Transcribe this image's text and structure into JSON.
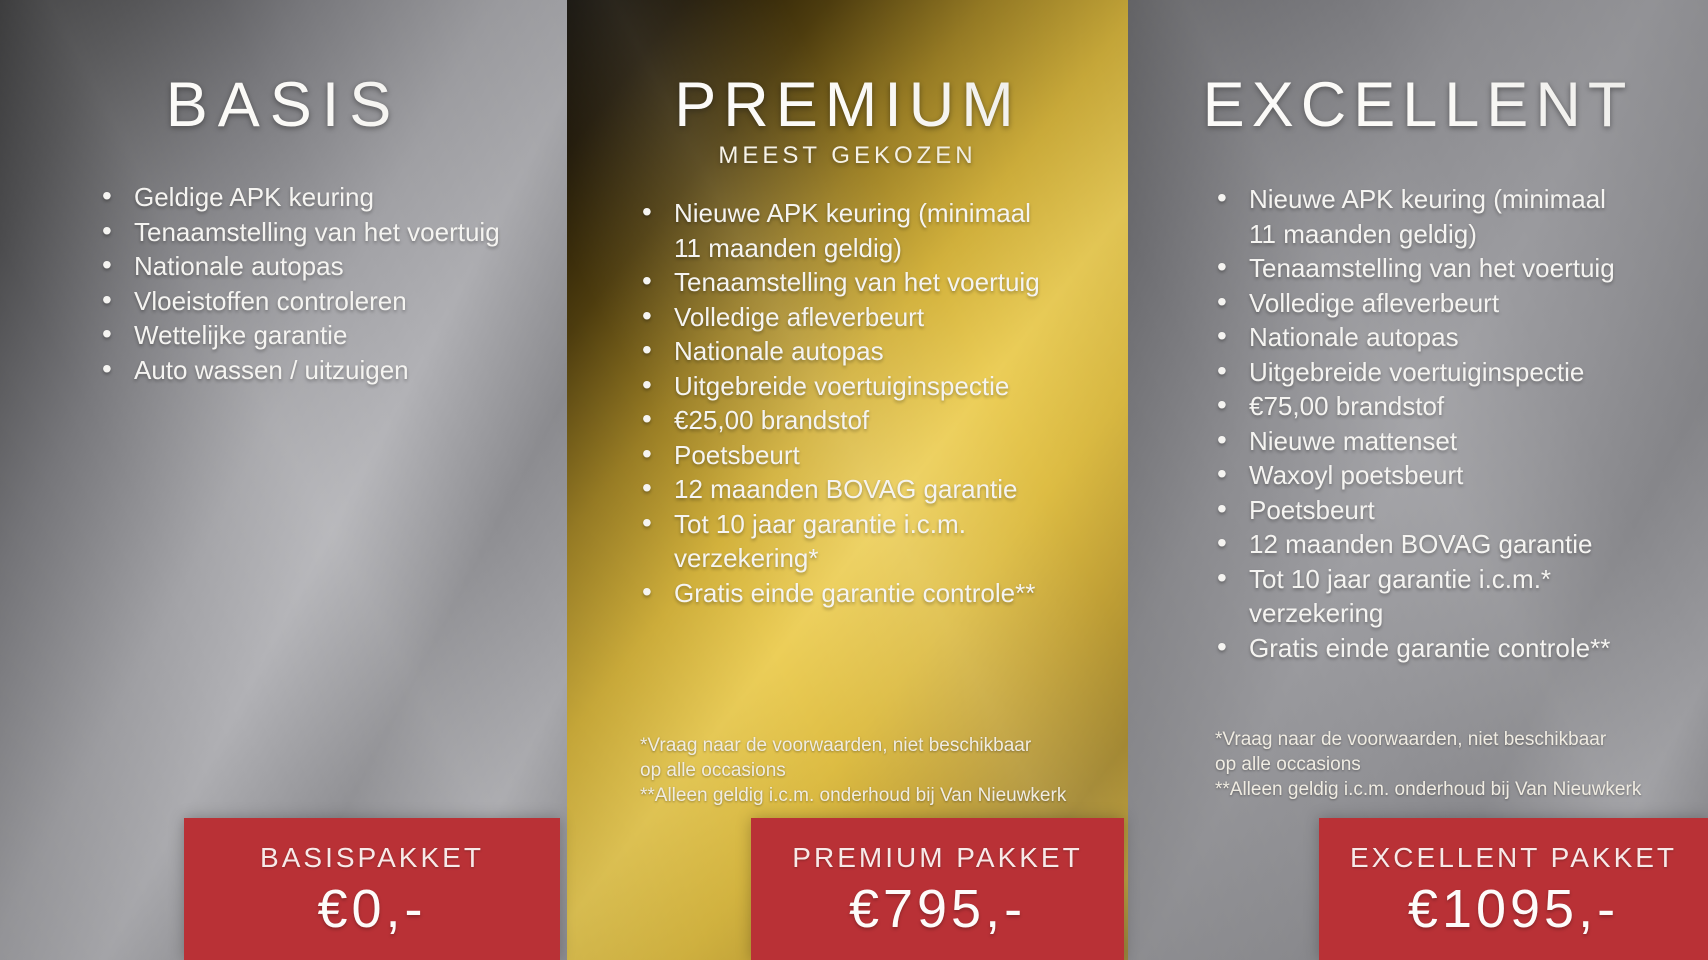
{
  "poster": {
    "language": "nl",
    "colors": {
      "banner_red": "#b93136",
      "gold_mid": "#d8bc4a",
      "silver_mid": "#9c9ca0",
      "text": "#f5f4f1"
    }
  },
  "columns": [
    {
      "id": "basis",
      "title": "BASIS",
      "subtitle": "",
      "items": [
        "Geldige APK keuring",
        "Tenaamstelling van het voertuig",
        "Nationale autopas",
        "Vloeistoffen controleren",
        "Wettelijke garantie",
        "Auto wassen / uitzuigen"
      ],
      "footnotes": [],
      "banner": {
        "label": "BASISPAKKET",
        "price": "€0,-"
      }
    },
    {
      "id": "premium",
      "title": "PREMIUM",
      "subtitle": "MEEST GEKOZEN",
      "items": [
        "Nieuwe APK keuring (minimaal\n11 maanden geldig)",
        "Tenaamstelling van het voertuig",
        "Volledige afleverbeurt",
        "Nationale autopas",
        "Uitgebreide voertuiginspectie",
        "€25,00 brandstof",
        "Poetsbeurt",
        "12 maanden BOVAG garantie",
        "Tot 10 jaar garantie i.c.m.\nverzekering*",
        "Gratis einde garantie controle**"
      ],
      "footnotes": [
        "*Vraag naar de voorwaarden, niet beschikbaar\n  op alle occasions",
        "**Alleen geldig i.c.m. onderhoud bij Van Nieuwkerk"
      ],
      "banner": {
        "label": "PREMIUM PAKKET",
        "price": "€795,-"
      }
    },
    {
      "id": "excellent",
      "title": "EXCELLENT",
      "subtitle": "",
      "items": [
        "Nieuwe APK keuring (minimaal\n11 maanden geldig)",
        "Tenaamstelling van het voertuig",
        "Volledige afleverbeurt",
        "Nationale autopas",
        "Uitgebreide voertuiginspectie",
        "€75,00 brandstof",
        "Nieuwe mattenset",
        "Waxoyl poetsbeurt",
        "Poetsbeurt",
        "12 maanden BOVAG garantie",
        "Tot 10 jaar garantie i.c.m.*\nverzekering",
        "Gratis einde garantie controle**"
      ],
      "footnotes": [
        "*Vraag naar de voorwaarden, niet beschikbaar\n  op alle occasions",
        "**Alleen geldig i.c.m. onderhoud bij Van Nieuwkerk"
      ],
      "banner": {
        "label": "EXCELLENT PAKKET",
        "price": "€1095,-"
      }
    }
  ]
}
